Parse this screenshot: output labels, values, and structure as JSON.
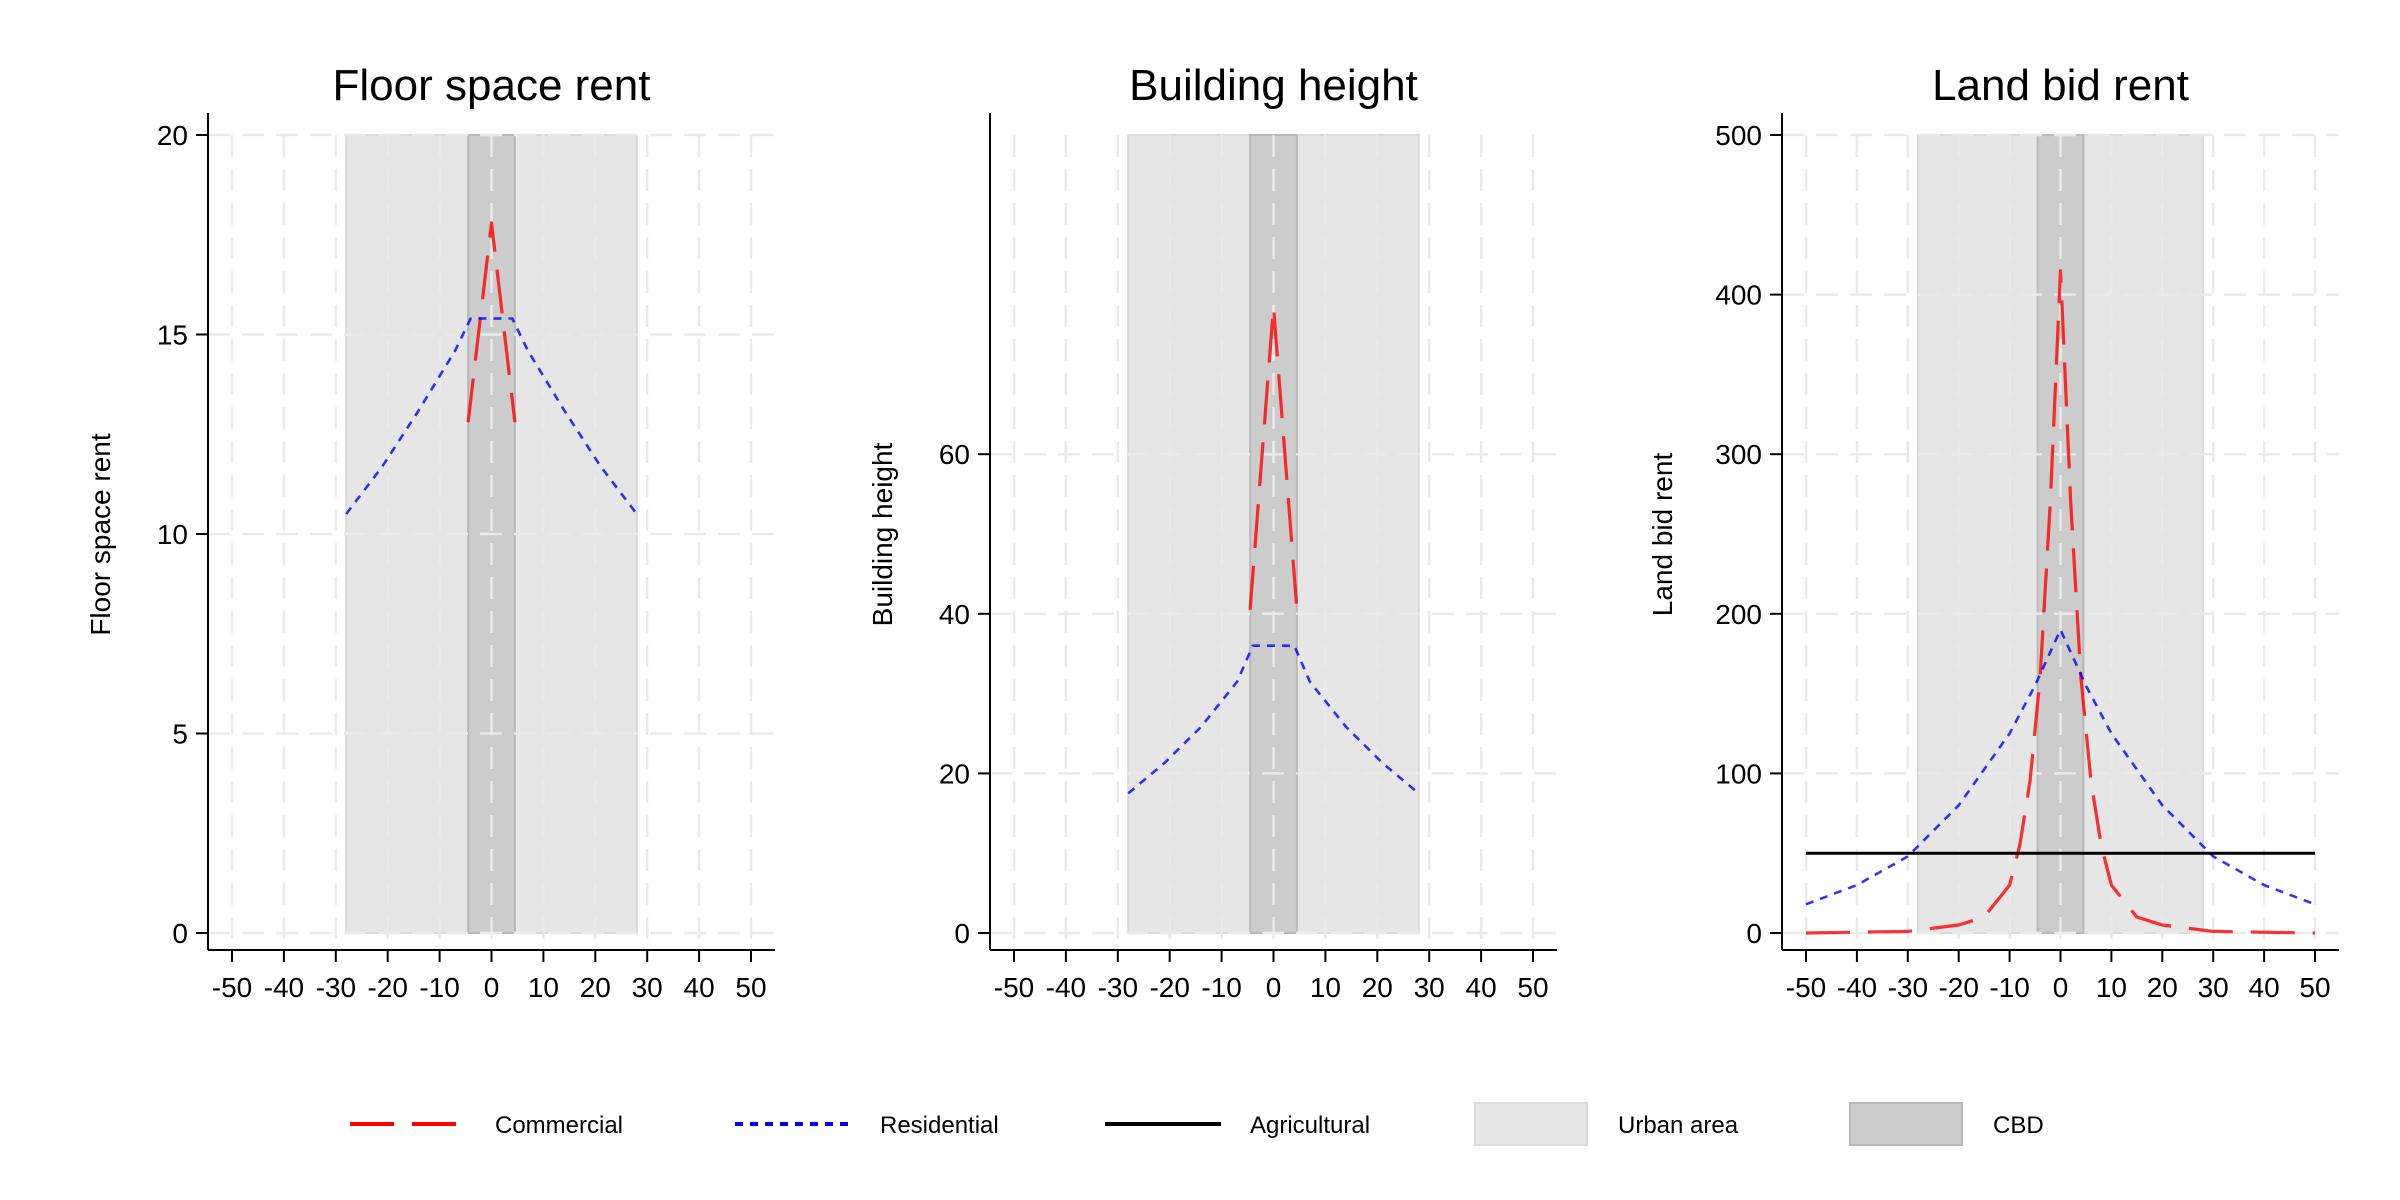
{
  "chart_data": [
    {
      "type": "line",
      "title": "Floor space rent",
      "xlabel": "",
      "ylabel": "Floor space rent",
      "xlim": [
        -55,
        55
      ],
      "ylim": [
        0,
        20
      ],
      "xticks": [
        -50,
        -40,
        -30,
        -20,
        -10,
        0,
        10,
        20,
        30,
        40,
        50
      ],
      "xtick_labels": [
        "-50",
        "-40",
        "-30",
        "-20",
        "-10",
        "0",
        "10",
        "20",
        "30",
        "40",
        "50"
      ],
      "yticks": [
        0,
        5,
        10,
        15,
        20
      ],
      "ytick_labels": [
        "0",
        "5",
        "10",
        "15",
        "20"
      ],
      "grid": true,
      "shaded_regions": [
        {
          "name": "Urban area",
          "x": [
            -28,
            28
          ]
        },
        {
          "name": "CBD",
          "x": [
            -4.5,
            4.5
          ]
        }
      ],
      "series": [
        {
          "name": "Commercial",
          "x": [
            -4.5,
            0,
            4.5
          ],
          "y": [
            12.8,
            17.8,
            12.8
          ]
        },
        {
          "name": "Residential",
          "x": [
            -28,
            -21,
            -14,
            -7,
            -4,
            4,
            7,
            14,
            21,
            28
          ],
          "y": [
            10.5,
            11.7,
            13.1,
            14.6,
            15.4,
            15.4,
            14.6,
            13.1,
            11.7,
            10.5
          ]
        }
      ]
    },
    {
      "type": "line",
      "title": "Building height",
      "xlabel": "",
      "ylabel": "Building height",
      "xlim": [
        -55,
        55
      ],
      "ylim": [
        0,
        100
      ],
      "xticks": [
        -50,
        -40,
        -30,
        -20,
        -10,
        0,
        10,
        20,
        30,
        40,
        50
      ],
      "xtick_labels": [
        "-50",
        "-40",
        "-30",
        "-20",
        "-10",
        "0",
        "10",
        "20",
        "30",
        "40",
        "50"
      ],
      "yticks": [
        0,
        20,
        40,
        60
      ],
      "ytick_labels": [
        "0",
        "20",
        "40",
        "60"
      ],
      "grid": true,
      "shaded_regions": [
        {
          "name": "Urban area",
          "x": [
            -28,
            28
          ]
        },
        {
          "name": "CBD",
          "x": [
            -4.5,
            4.5
          ]
        }
      ],
      "series": [
        {
          "name": "Commercial",
          "x": [
            -4.5,
            0,
            4.5
          ],
          "y": [
            40.5,
            78.5,
            40.5
          ]
        },
        {
          "name": "Residential",
          "x": [
            -28,
            -21,
            -14,
            -7,
            -4,
            4,
            7,
            14,
            21,
            28
          ],
          "y": [
            17.5,
            21.3,
            25.8,
            31.5,
            36.0,
            36.0,
            31.5,
            25.8,
            21.3,
            17.5
          ]
        }
      ]
    },
    {
      "type": "line",
      "title": "Land bid rent",
      "xlabel": "",
      "ylabel": "Land bid rent",
      "xlim": [
        -55,
        55
      ],
      "ylim": [
        0,
        500
      ],
      "xticks": [
        -50,
        -40,
        -30,
        -20,
        -10,
        0,
        10,
        20,
        30,
        40,
        50
      ],
      "xtick_labels": [
        "-50",
        "-40",
        "-30",
        "-20",
        "-10",
        "0",
        "10",
        "20",
        "30",
        "40",
        "50"
      ],
      "yticks": [
        0,
        100,
        200,
        300,
        400,
        500
      ],
      "ytick_labels": [
        "0",
        "100",
        "200",
        "300",
        "400",
        "500"
      ],
      "grid": true,
      "shaded_regions": [
        {
          "name": "Urban area",
          "x": [
            -28,
            28
          ]
        },
        {
          "name": "CBD",
          "x": [
            -4.5,
            4.5
          ]
        }
      ],
      "series": [
        {
          "name": "Commercial",
          "x": [
            -50,
            -30,
            -20,
            -15,
            -10,
            -8,
            -6,
            -4,
            -2,
            0,
            2,
            4,
            6,
            8,
            10,
            15,
            20,
            30,
            50
          ],
          "y": [
            0,
            1,
            5,
            10,
            30,
            55,
            95,
            160,
            270,
            415,
            270,
            160,
            95,
            55,
            30,
            10,
            5,
            1,
            0
          ]
        },
        {
          "name": "Residential",
          "x": [
            -50,
            -40,
            -30,
            -20,
            -10,
            -5,
            0,
            5,
            10,
            20,
            30,
            40,
            50
          ],
          "y": [
            18,
            30,
            48,
            80,
            125,
            155,
            190,
            155,
            125,
            80,
            48,
            30,
            18
          ]
        },
        {
          "name": "Agricultural",
          "x": [
            -50,
            50
          ],
          "y": [
            50,
            50
          ]
        }
      ]
    }
  ],
  "legend": {
    "placement": "bottom",
    "items": [
      {
        "key": "Commercial",
        "label": "Commercial",
        "kind": "line",
        "color": "#ff0000",
        "dash": "long-dash"
      },
      {
        "key": "Residential",
        "label": "Residential",
        "kind": "line",
        "color": "#0000ff",
        "dash": "short-dash"
      },
      {
        "key": "Agricultural",
        "label": "Agricultural",
        "kind": "line",
        "color": "#000000",
        "dash": "solid"
      },
      {
        "key": "Urban area",
        "label": "Urban area",
        "kind": "area",
        "color": "#e6e6e6"
      },
      {
        "key": "CBD",
        "label": "CBD",
        "kind": "area",
        "color": "#cccccc"
      }
    ]
  },
  "colors": {
    "commercial": "#ff0000",
    "residential": "#0000ff",
    "agricultural": "#000000",
    "urban_area": "#e6e6e6",
    "cbd": "#cccccc",
    "grid": "#eaeaea"
  }
}
